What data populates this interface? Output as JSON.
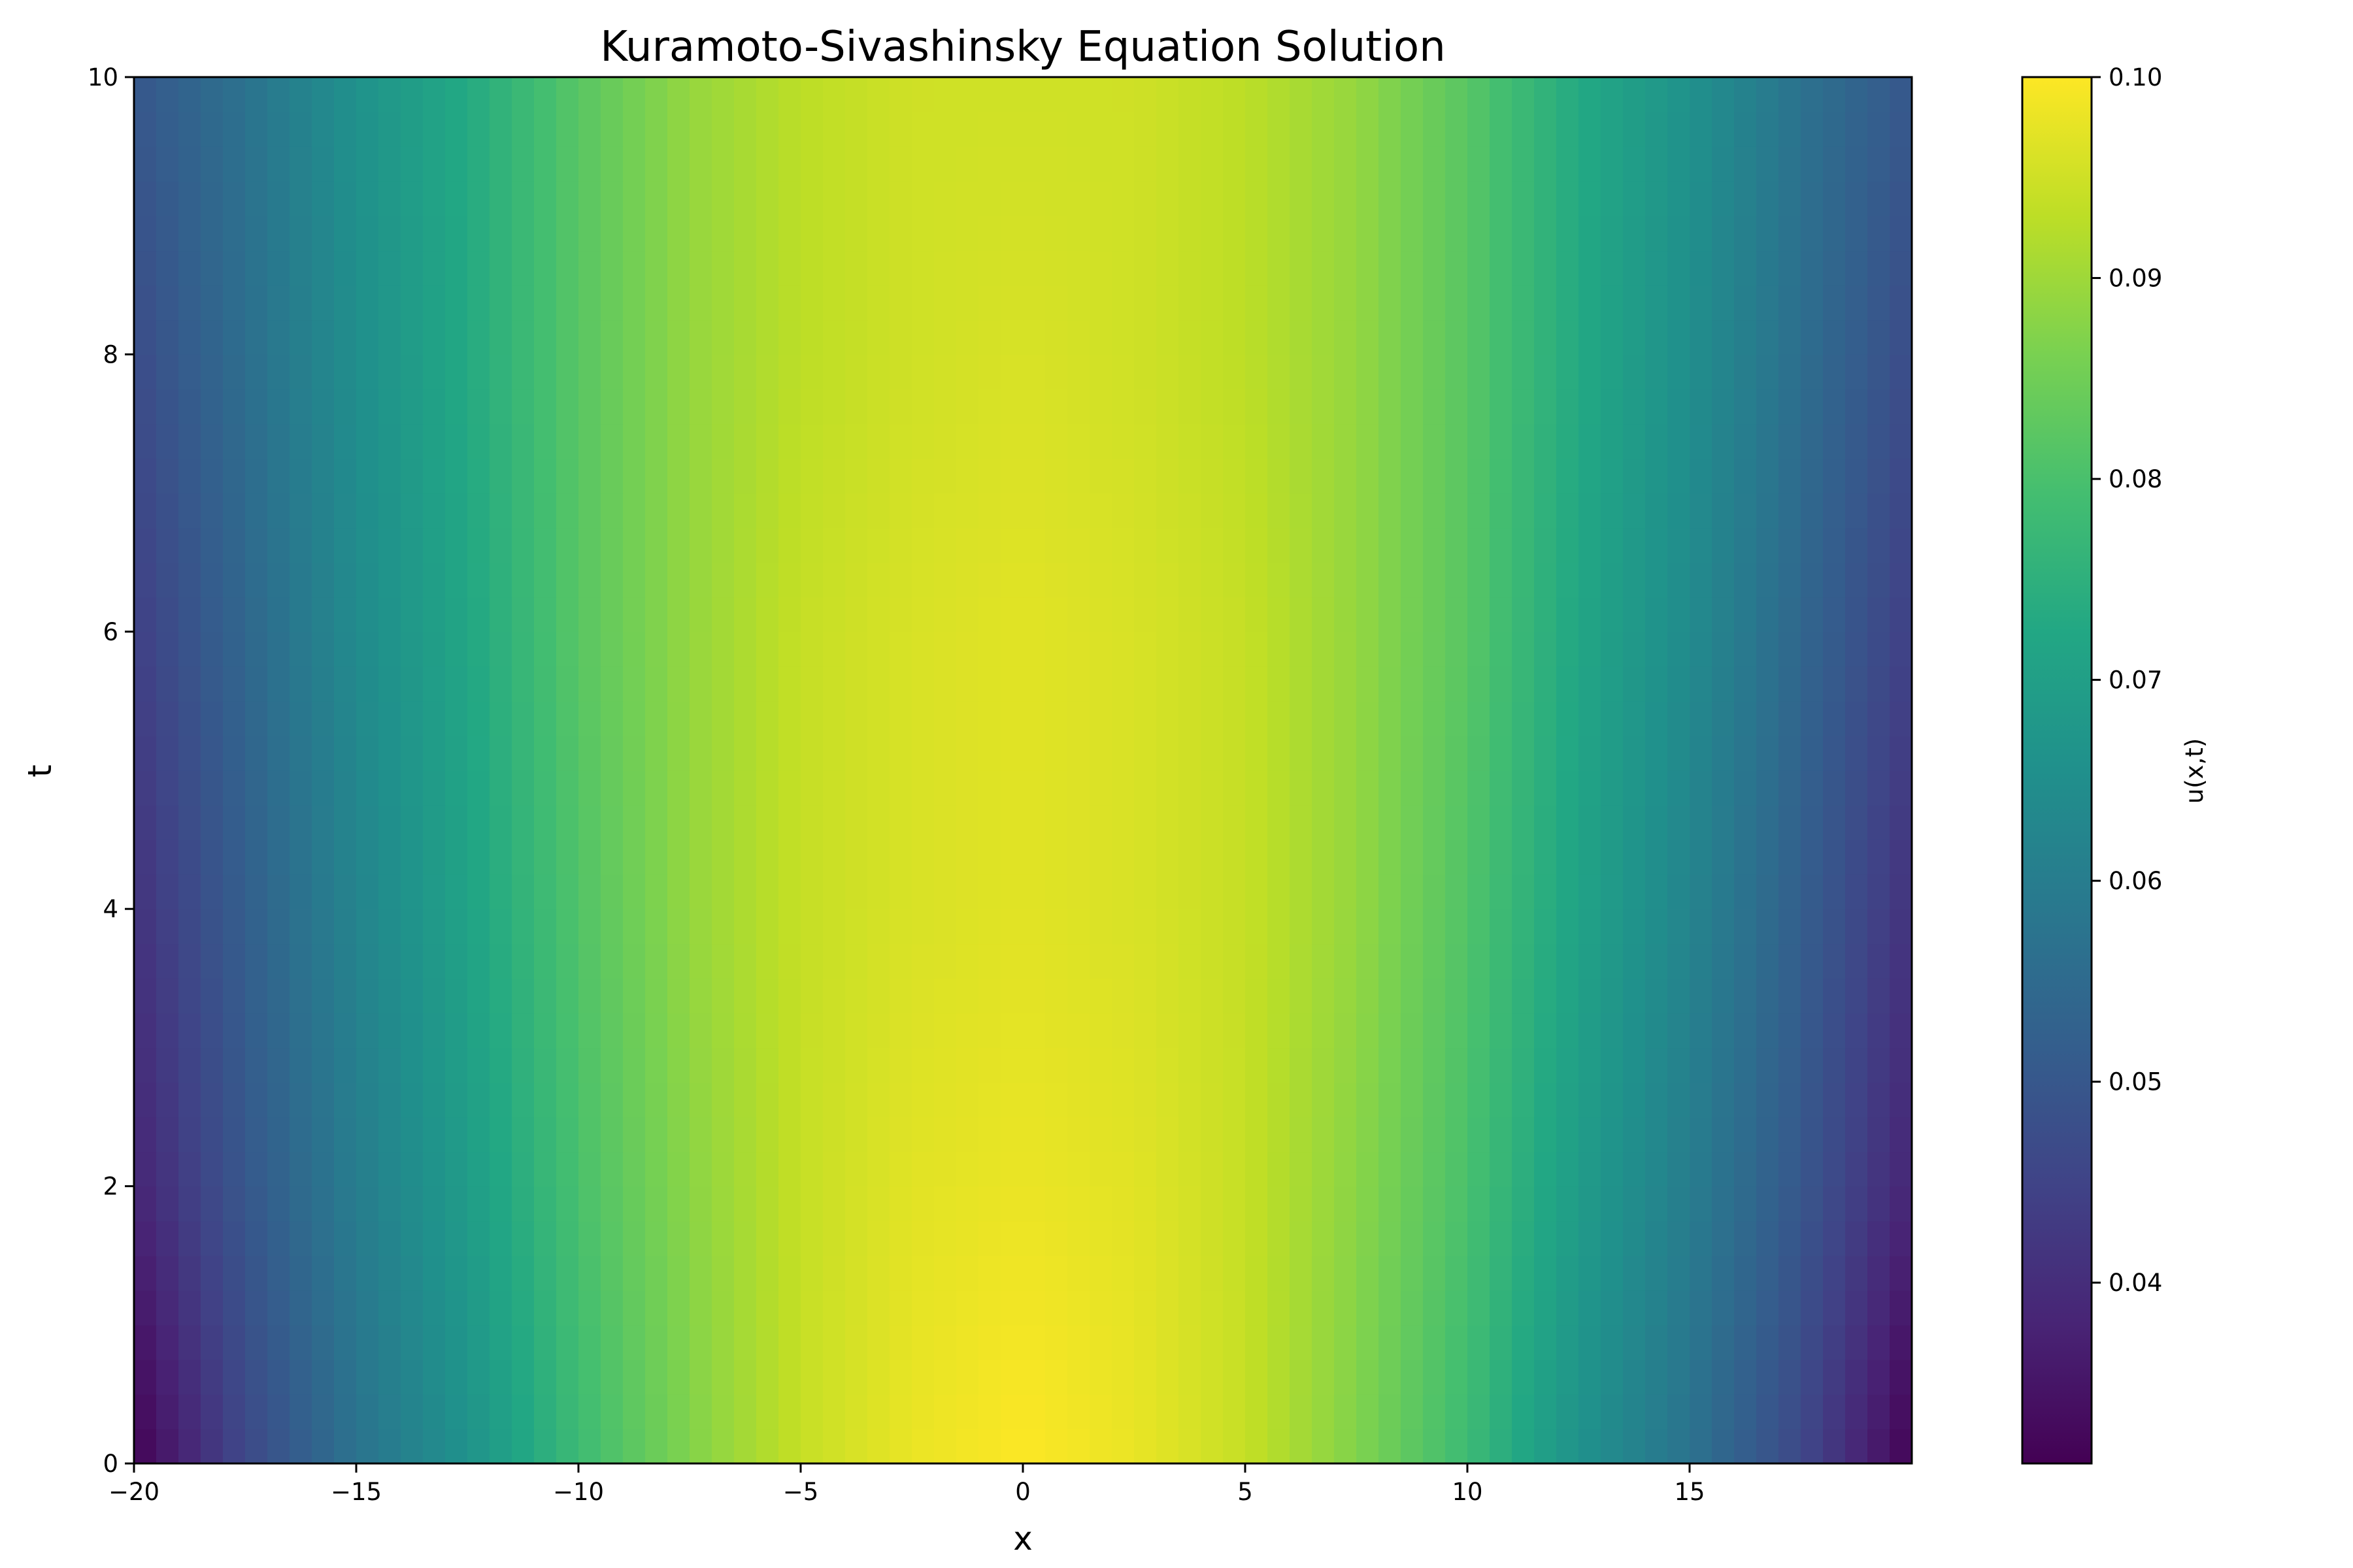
{
  "chart_data": {
    "type": "heatmap",
    "title": "Kuramoto-Sivashinsky Equation Solution",
    "xlabel": "x",
    "ylabel": "t",
    "colorbar_label": "u(x,t)",
    "colormap": "viridis",
    "xlim": [
      -20,
      20
    ],
    "ylim": [
      0,
      10
    ],
    "x_ticks": [
      {
        "value": -20,
        "label": "−20"
      },
      {
        "value": -15,
        "label": "−15"
      },
      {
        "value": -10,
        "label": "−10"
      },
      {
        "value": -5,
        "label": "−5"
      },
      {
        "value": 0,
        "label": "0"
      },
      {
        "value": 5,
        "label": "5"
      },
      {
        "value": 10,
        "label": "10"
      },
      {
        "value": 15,
        "label": "15"
      }
    ],
    "y_ticks": [
      {
        "value": 0,
        "label": "0"
      },
      {
        "value": 2,
        "label": "2"
      },
      {
        "value": 4,
        "label": "4"
      },
      {
        "value": 6,
        "label": "6"
      },
      {
        "value": 8,
        "label": "8"
      },
      {
        "value": 10,
        "label": "10"
      }
    ],
    "colorbar_range": [
      0.031,
      0.1
    ],
    "colorbar_ticks": [
      {
        "value": 0.04,
        "label": "0.04"
      },
      {
        "value": 0.05,
        "label": "0.05"
      },
      {
        "value": 0.06,
        "label": "0.06"
      },
      {
        "value": 0.07,
        "label": "0.07"
      },
      {
        "value": 0.08,
        "label": "0.08"
      },
      {
        "value": 0.09,
        "label": "0.09"
      },
      {
        "value": 0.1,
        "label": "0.10"
      }
    ],
    "x": [
      -20,
      -17.5,
      -15,
      -12.5,
      -10,
      -7.5,
      -5,
      -2.5,
      0,
      2.5,
      5,
      7.5,
      10,
      12.5,
      15,
      17.5,
      20
    ],
    "t": [
      0,
      2,
      4,
      6,
      8,
      10
    ],
    "u": [
      [
        0.031,
        0.046,
        0.057,
        0.066,
        0.078,
        0.087,
        0.094,
        0.098,
        0.1,
        0.098,
        0.094,
        0.087,
        0.078,
        0.066,
        0.057,
        0.046,
        0.031
      ],
      [
        0.038,
        0.05,
        0.06,
        0.069,
        0.08,
        0.088,
        0.094,
        0.097,
        0.098,
        0.097,
        0.094,
        0.088,
        0.08,
        0.069,
        0.06,
        0.05,
        0.038
      ],
      [
        0.041,
        0.052,
        0.062,
        0.071,
        0.081,
        0.089,
        0.094,
        0.096,
        0.097,
        0.096,
        0.094,
        0.089,
        0.081,
        0.071,
        0.062,
        0.052,
        0.041
      ],
      [
        0.044,
        0.054,
        0.064,
        0.072,
        0.082,
        0.089,
        0.094,
        0.096,
        0.097,
        0.096,
        0.094,
        0.089,
        0.082,
        0.072,
        0.064,
        0.054,
        0.044
      ],
      [
        0.047,
        0.056,
        0.065,
        0.073,
        0.082,
        0.089,
        0.093,
        0.095,
        0.096,
        0.095,
        0.093,
        0.089,
        0.082,
        0.073,
        0.065,
        0.056,
        0.047
      ],
      [
        0.05,
        0.057,
        0.066,
        0.073,
        0.082,
        0.089,
        0.093,
        0.095,
        0.095,
        0.095,
        0.093,
        0.089,
        0.082,
        0.073,
        0.066,
        0.057,
        0.05
      ]
    ]
  }
}
